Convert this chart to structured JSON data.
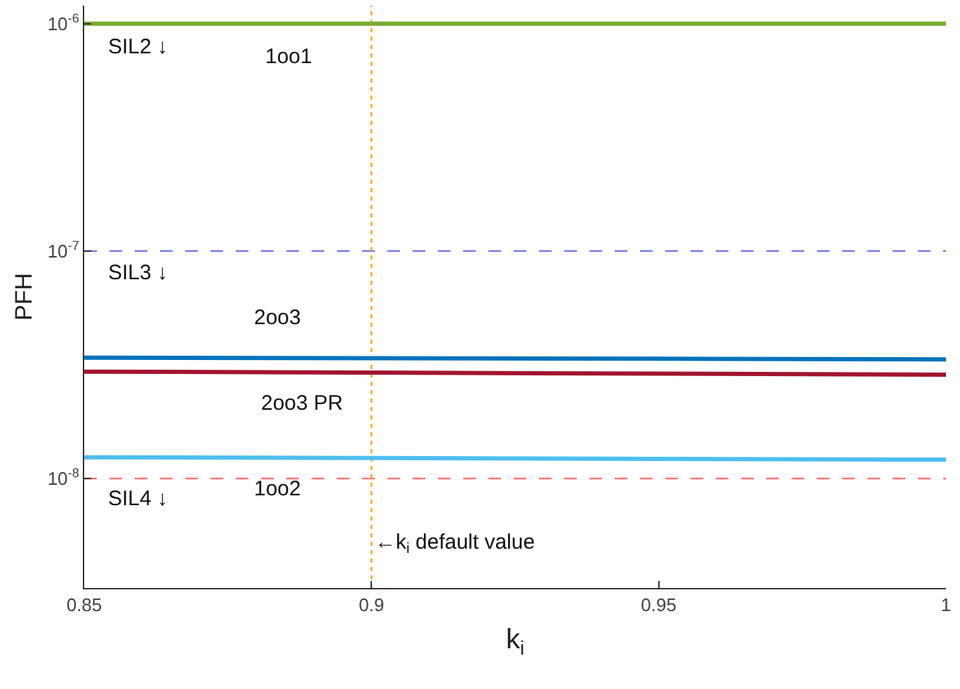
{
  "chart_data": {
    "type": "line",
    "xlabel": "k$_{i}$",
    "ylabel": "PFH",
    "log": "y",
    "grid": false,
    "legend": false,
    "marker": "none",
    "xlim": [
      0.85,
      1.0
    ],
    "xticks": [
      0.85,
      0.9,
      0.95,
      1
    ],
    "ylim": [
      3.3e-09,
      1.2e-06
    ],
    "yticks": [
      {
        "value": 1e-08,
        "label": "10$^{-8}$"
      },
      {
        "value": 1e-07,
        "label": "10$^{-7}$"
      },
      {
        "value": 1e-06,
        "label": "10$^{-6}$"
      }
    ],
    "series": [
      {
        "color": "#77ac30",
        "line_style": "solid",
        "x": [
          0.85,
          0.9,
          0.95,
          1.0
        ],
        "values": [
          1e-06,
          1e-06,
          1e-06,
          1e-06
        ]
      },
      {
        "color": "#0072bd",
        "line_style": "solid",
        "x": [
          0.85,
          0.9,
          0.95,
          1.0
        ],
        "values": [
          3.4e-08,
          3.38e-08,
          3.36e-08,
          3.34e-08
        ]
      },
      {
        "color": "#a2142f",
        "line_style": "solid",
        "x": [
          0.85,
          0.9,
          0.95,
          1.0
        ],
        "values": [
          2.95e-08,
          2.92e-08,
          2.89e-08,
          2.86e-08
        ]
      },
      {
        "color": "#4dbeee",
        "line_style": "solid",
        "x": [
          0.85,
          0.9,
          0.95,
          1.0
        ],
        "values": [
          1.24e-08,
          1.23e-08,
          1.22e-08,
          1.21e-08
        ]
      }
    ],
    "ref_lines": [
      {
        "axis": "y",
        "value": 1e-07,
        "color": "#7b7bf0",
        "line_style": "dashed"
      },
      {
        "axis": "y",
        "value": 1e-08,
        "color": "#ff7575",
        "line_style": "dashed"
      },
      {
        "axis": "x",
        "value": 0.9,
        "color": "#f5a030",
        "line_style": "dotted",
        "label": "←k$_{i}$ default value"
      }
    ],
    "annotations": [
      "SIL2 ↓",
      "1oo1",
      "SIL3 ↓",
      "2oo3",
      "2oo3 PR",
      "1oo2",
      "SIL4 ↓"
    ]
  }
}
